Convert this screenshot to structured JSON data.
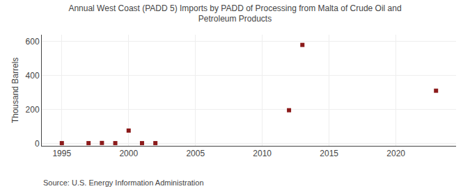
{
  "chart_data": {
    "type": "scatter",
    "title": "Annual West Coast (PADD 5) Imports by PADD of Processing from Malta of Crude Oil and\nPetroleum Products",
    "y_label": "Thousand Barrels",
    "annotations": [
      "Source: U.S. Energy Information Administration"
    ],
    "x": [
      1995,
      1997,
      1998,
      1999,
      2000,
      2001,
      2002,
      2012,
      2013,
      2023
    ],
    "values": [
      1,
      1,
      2,
      1,
      75,
      1,
      1,
      195,
      580,
      310
    ],
    "color": "#8b1a1a",
    "marker": "square",
    "xlim": [
      1993.5,
      2024.5
    ],
    "ylim": [
      -15,
      640
    ],
    "xticks": [
      1995,
      2000,
      2005,
      2010,
      2015,
      2020
    ],
    "yticks": [
      0,
      200,
      400,
      600
    ],
    "grid": true
  }
}
